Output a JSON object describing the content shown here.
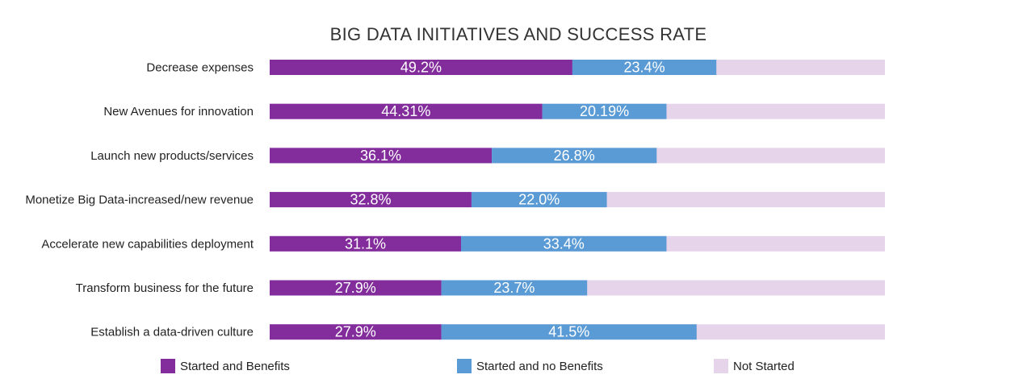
{
  "chart_data": {
    "type": "bar",
    "orientation": "horizontal",
    "stacked": true,
    "title": "BIG DATA INITIATIVES AND SUCCESS RATE",
    "categories": [
      "Decrease expenses",
      "New Avenues for innovation",
      "Launch new products/services",
      "Monetize Big Data-increased/new revenue",
      "Accelerate new capabilities deployment",
      "Transform business for the future",
      "Establish a data-driven culture"
    ],
    "series": [
      {
        "name": "Started and Benefits",
        "color": "#832c9c",
        "values": [
          49.2,
          44.31,
          36.1,
          32.8,
          31.1,
          27.9,
          27.9
        ],
        "labels": [
          "49.2%",
          "44.31%",
          "36.1%",
          "32.8%",
          "31.1%",
          "27.9%",
          "27.9%"
        ]
      },
      {
        "name": "Started and no Benefits",
        "color": "#5b9bd5",
        "values": [
          23.4,
          20.19,
          26.8,
          22.0,
          33.4,
          23.7,
          41.5
        ],
        "labels": [
          "23.4%",
          "20.19%",
          "26.8%",
          "22.0%",
          "33.4%",
          "23.7%",
          "41.5%"
        ]
      },
      {
        "name": "Not Started",
        "color": "#e6d5ea"
      }
    ],
    "xlim": [
      0,
      100
    ],
    "grid": false,
    "legend": "bottom"
  }
}
